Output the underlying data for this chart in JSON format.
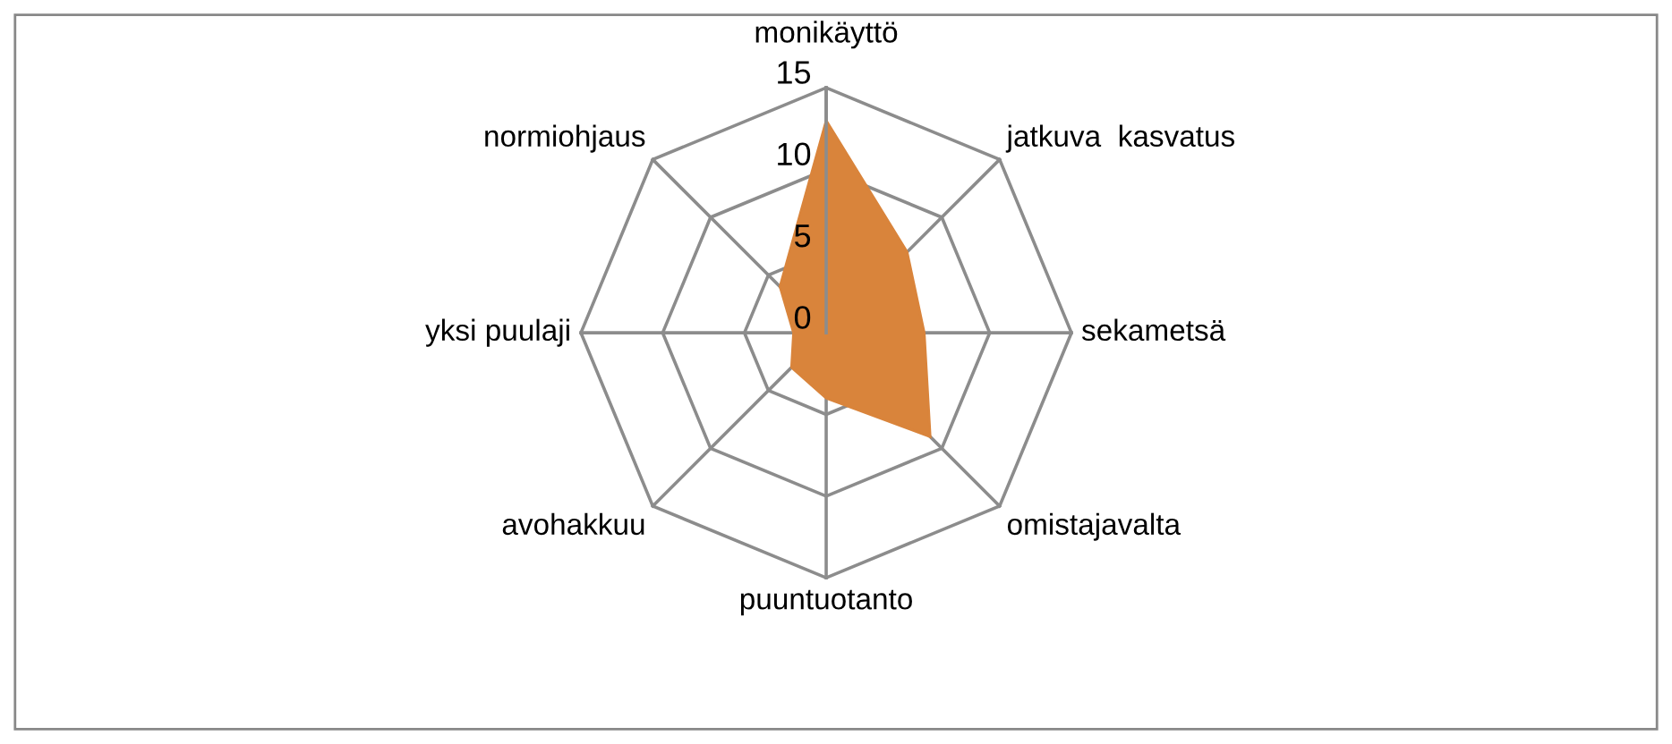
{
  "chart_data": {
    "type": "radar",
    "categories": [
      "monikäyttö",
      "jatkuva  kasvatus",
      "sekametsä",
      "omistajavalta",
      "puuntuotanto",
      "avohakkuu",
      "yksi puulaji",
      "normiohjaus"
    ],
    "series": [
      {
        "color": "#d9843b",
        "values": [
          13,
          7,
          6,
          9,
          4,
          3,
          2,
          4
        ]
      }
    ],
    "ylim": [
      0,
      15
    ],
    "yticks": [
      0,
      5,
      10,
      15
    ],
    "grid": true,
    "legend": false
  }
}
